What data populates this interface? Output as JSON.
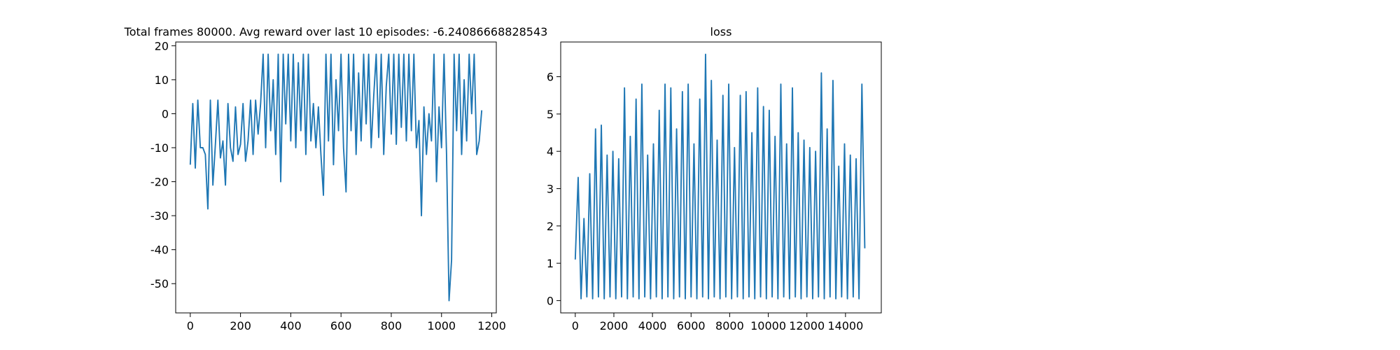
{
  "chart_data": [
    {
      "type": "line",
      "title": "Total frames 80000. Avg reward over last 10 episodes: -6.24086668828543",
      "color": "#1f77b4",
      "xlim": [
        -58,
        1218
      ],
      "xticks": [
        0,
        200,
        400,
        600,
        800,
        1000,
        1200
      ],
      "ylim": [
        -58.6,
        21.1
      ],
      "yticks": [
        -50,
        -40,
        -30,
        -20,
        -10,
        0,
        10,
        20
      ],
      "x": [
        0,
        10,
        20,
        30,
        40,
        50,
        60,
        70,
        80,
        90,
        100,
        110,
        120,
        130,
        140,
        150,
        160,
        170,
        180,
        190,
        200,
        210,
        220,
        230,
        240,
        250,
        260,
        270,
        280,
        290,
        300,
        310,
        320,
        330,
        340,
        350,
        360,
        370,
        380,
        390,
        400,
        410,
        420,
        430,
        440,
        450,
        460,
        470,
        480,
        490,
        500,
        510,
        520,
        530,
        540,
        550,
        560,
        570,
        580,
        590,
        600,
        610,
        620,
        630,
        640,
        650,
        660,
        670,
        680,
        690,
        700,
        710,
        720,
        730,
        740,
        750,
        760,
        770,
        780,
        790,
        800,
        810,
        820,
        830,
        840,
        850,
        860,
        870,
        880,
        890,
        900,
        910,
        920,
        930,
        940,
        950,
        960,
        970,
        980,
        990,
        1000,
        1010,
        1020,
        1030,
        1040,
        1050,
        1060,
        1070,
        1080,
        1090,
        1100,
        1110,
        1120,
        1130,
        1140,
        1150,
        1160
      ],
      "values": [
        -15,
        3,
        -16,
        4,
        -10,
        -10,
        -12,
        -28,
        4,
        -21,
        -9,
        4,
        -13,
        -8,
        -21,
        3,
        -10,
        -14,
        2,
        -12,
        -9,
        3,
        -14,
        -8,
        4,
        -12,
        4,
        -6,
        3,
        17.5,
        -10,
        17.5,
        -5,
        10,
        -12,
        17.5,
        -20,
        17.5,
        -3,
        17.5,
        -8,
        17.5,
        -10,
        15,
        -5,
        17.5,
        -12,
        17.5,
        -8,
        3,
        -10,
        2,
        -12,
        -24,
        17.5,
        -8,
        17.5,
        -15,
        10,
        -5,
        17.5,
        -10,
        -23,
        17.5,
        -5,
        17.5,
        -12,
        12,
        -8,
        17.5,
        -3,
        17.5,
        -10,
        5,
        17.5,
        -7,
        17.5,
        -12,
        8,
        17.5,
        -6,
        17.5,
        -9,
        17.5,
        -4,
        17.5,
        -8,
        17.5,
        -5,
        17.5,
        -10,
        -2,
        -30,
        2,
        -12,
        0,
        -8,
        17.5,
        -20,
        2,
        -10,
        17.5,
        -12,
        -55,
        -43,
        17.5,
        -5,
        17.5,
        -12,
        10,
        -8,
        17.5,
        0,
        17.5,
        -12,
        -8,
        1
      ]
    },
    {
      "type": "line",
      "title": "loss",
      "color": "#1f77b4",
      "xlim": [
        -755,
        15855
      ],
      "xticks": [
        0,
        2000,
        4000,
        6000,
        8000,
        10000,
        12000,
        14000
      ],
      "ylim": [
        -0.33,
        6.93
      ],
      "yticks": [
        0,
        1,
        2,
        3,
        4,
        5,
        6
      ],
      "x": [
        0,
        150,
        300,
        450,
        600,
        750,
        900,
        1050,
        1200,
        1350,
        1500,
        1650,
        1800,
        1950,
        2100,
        2250,
        2400,
        2550,
        2700,
        2850,
        3000,
        3150,
        3300,
        3450,
        3600,
        3750,
        3900,
        4050,
        4200,
        4350,
        4500,
        4650,
        4800,
        4950,
        5100,
        5250,
        5400,
        5550,
        5700,
        5850,
        6000,
        6150,
        6300,
        6450,
        6600,
        6750,
        6900,
        7050,
        7200,
        7350,
        7500,
        7650,
        7800,
        7950,
        8100,
        8250,
        8400,
        8550,
        8700,
        8850,
        9000,
        9150,
        9300,
        9450,
        9600,
        9750,
        9900,
        10050,
        10200,
        10350,
        10500,
        10650,
        10800,
        10950,
        11100,
        11250,
        11400,
        11550,
        11700,
        11850,
        12000,
        12150,
        12300,
        12450,
        12600,
        12750,
        12900,
        13050,
        13200,
        13350,
        13500,
        13650,
        13800,
        13950,
        14100,
        14250,
        14400,
        14550,
        14700,
        14850,
        15000
      ],
      "values": [
        1.1,
        3.3,
        0.05,
        2.2,
        0.1,
        3.4,
        0.05,
        4.6,
        0.1,
        4.7,
        0.05,
        3.9,
        0.1,
        4.0,
        0.05,
        3.8,
        0.1,
        5.7,
        0.05,
        4.4,
        0.1,
        5.4,
        0.05,
        5.8,
        0.1,
        3.9,
        0.05,
        4.2,
        0.1,
        5.1,
        0.05,
        5.8,
        0.1,
        5.7,
        0.05,
        4.6,
        0.1,
        5.6,
        0.05,
        5.8,
        0.1,
        4.2,
        0.05,
        5.4,
        0.1,
        6.6,
        0.05,
        5.9,
        0.1,
        4.3,
        0.05,
        5.5,
        0.1,
        5.8,
        0.05,
        4.1,
        0.1,
        5.5,
        0.05,
        5.6,
        0.1,
        4.5,
        0.05,
        5.7,
        0.1,
        5.2,
        0.05,
        5.1,
        0.1,
        4.4,
        0.05,
        5.8,
        0.1,
        4.2,
        0.05,
        5.7,
        0.1,
        4.5,
        0.05,
        4.3,
        0.1,
        4.1,
        0.05,
        4.0,
        0.1,
        6.1,
        0.05,
        4.6,
        0.1,
        5.9,
        0.05,
        3.6,
        0.1,
        4.2,
        0.05,
        3.9,
        0.1,
        3.8,
        0.05,
        5.8,
        1.4
      ]
    }
  ]
}
